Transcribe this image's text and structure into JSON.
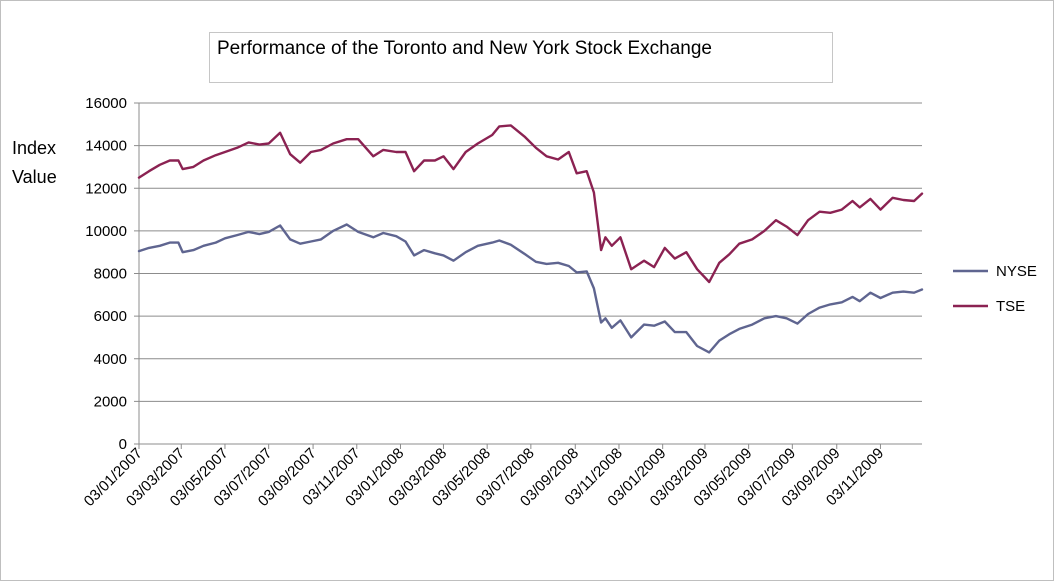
{
  "chart_data": {
    "type": "line",
    "title": "Performance of the Toronto and New York Stock Exchange",
    "ylabel_line1": "Index",
    "ylabel_line2": "Value",
    "xlabel": "",
    "ylim": [
      0,
      16000
    ],
    "yticks": [
      0,
      2000,
      4000,
      6000,
      8000,
      10000,
      12000,
      14000,
      16000
    ],
    "x_range": [
      "2007-01-03",
      "2009-12-31"
    ],
    "x_tick_labels": [
      "03/01/2007",
      "03/03/2007",
      "03/05/2007",
      "03/07/2007",
      "03/09/2007",
      "03/11/2007",
      "03/01/2008",
      "03/03/2008",
      "03/05/2008",
      "03/07/2008",
      "03/09/2008",
      "03/11/2008",
      "03/01/2009",
      "03/03/2009",
      "03/05/2009",
      "03/07/2009",
      "03/09/2009",
      "03/11/2009"
    ],
    "x_tick_dates": [
      "2007-01-03",
      "2007-03-03",
      "2007-05-03",
      "2007-07-03",
      "2007-09-03",
      "2007-11-03",
      "2008-01-03",
      "2008-03-03",
      "2008-05-03",
      "2008-07-03",
      "2008-09-03",
      "2008-11-03",
      "2009-01-03",
      "2009-03-03",
      "2009-05-03",
      "2009-07-03",
      "2009-09-03",
      "2009-11-03"
    ],
    "grid": true,
    "legend_position": "right",
    "series": [
      {
        "name": "NYSE",
        "color": "#5f6590",
        "points": [
          [
            "2007-01-03",
            9050
          ],
          [
            "2007-01-17",
            9200
          ],
          [
            "2007-02-01",
            9300
          ],
          [
            "2007-02-15",
            9450
          ],
          [
            "2007-02-27",
            9450
          ],
          [
            "2007-03-05",
            9000
          ],
          [
            "2007-03-20",
            9100
          ],
          [
            "2007-04-03",
            9300
          ],
          [
            "2007-04-20",
            9450
          ],
          [
            "2007-05-03",
            9650
          ],
          [
            "2007-05-20",
            9800
          ],
          [
            "2007-06-05",
            9950
          ],
          [
            "2007-06-20",
            9850
          ],
          [
            "2007-07-03",
            9950
          ],
          [
            "2007-07-19",
            10250
          ],
          [
            "2007-08-02",
            9600
          ],
          [
            "2007-08-16",
            9400
          ],
          [
            "2007-08-31",
            9500
          ],
          [
            "2007-09-14",
            9600
          ],
          [
            "2007-10-01",
            10000
          ],
          [
            "2007-10-20",
            10300
          ],
          [
            "2007-11-05",
            9950
          ],
          [
            "2007-11-26",
            9700
          ],
          [
            "2007-12-10",
            9900
          ],
          [
            "2007-12-28",
            9750
          ],
          [
            "2008-01-10",
            9500
          ],
          [
            "2008-01-22",
            8850
          ],
          [
            "2008-02-05",
            9100
          ],
          [
            "2008-02-20",
            8950
          ],
          [
            "2008-03-03",
            8850
          ],
          [
            "2008-03-17",
            8600
          ],
          [
            "2008-04-03",
            9000
          ],
          [
            "2008-04-20",
            9300
          ],
          [
            "2008-05-10",
            9450
          ],
          [
            "2008-05-20",
            9550
          ],
          [
            "2008-06-05",
            9350
          ],
          [
            "2008-06-25",
            8900
          ],
          [
            "2008-07-10",
            8550
          ],
          [
            "2008-07-25",
            8450
          ],
          [
            "2008-08-10",
            8500
          ],
          [
            "2008-08-25",
            8350
          ],
          [
            "2008-09-05",
            8050
          ],
          [
            "2008-09-19",
            8100
          ],
          [
            "2008-09-29",
            7300
          ],
          [
            "2008-10-09",
            5700
          ],
          [
            "2008-10-15",
            5900
          ],
          [
            "2008-10-24",
            5450
          ],
          [
            "2008-11-05",
            5800
          ],
          [
            "2008-11-20",
            5000
          ],
          [
            "2008-12-08",
            5600
          ],
          [
            "2008-12-22",
            5550
          ],
          [
            "2009-01-06",
            5750
          ],
          [
            "2009-01-20",
            5250
          ],
          [
            "2009-02-05",
            5250
          ],
          [
            "2009-02-20",
            4600
          ],
          [
            "2009-03-09",
            4300
          ],
          [
            "2009-03-23",
            4850
          ],
          [
            "2009-04-06",
            5150
          ],
          [
            "2009-04-20",
            5400
          ],
          [
            "2009-05-08",
            5600
          ],
          [
            "2009-05-25",
            5900
          ],
          [
            "2009-06-10",
            6000
          ],
          [
            "2009-06-25",
            5900
          ],
          [
            "2009-07-10",
            5650
          ],
          [
            "2009-07-25",
            6100
          ],
          [
            "2009-08-10",
            6400
          ],
          [
            "2009-08-25",
            6550
          ],
          [
            "2009-09-10",
            6650
          ],
          [
            "2009-09-25",
            6900
          ],
          [
            "2009-10-05",
            6700
          ],
          [
            "2009-10-20",
            7100
          ],
          [
            "2009-11-03",
            6850
          ],
          [
            "2009-11-20",
            7100
          ],
          [
            "2009-12-05",
            7150
          ],
          [
            "2009-12-20",
            7100
          ],
          [
            "2009-12-31",
            7250
          ]
        ]
      },
      {
        "name": "TSE",
        "color": "#8b2252",
        "points": [
          [
            "2007-01-03",
            12500
          ],
          [
            "2007-01-17",
            12800
          ],
          [
            "2007-02-01",
            13100
          ],
          [
            "2007-02-15",
            13300
          ],
          [
            "2007-02-27",
            13300
          ],
          [
            "2007-03-05",
            12900
          ],
          [
            "2007-03-20",
            13000
          ],
          [
            "2007-04-03",
            13300
          ],
          [
            "2007-04-20",
            13550
          ],
          [
            "2007-05-03",
            13700
          ],
          [
            "2007-05-20",
            13900
          ],
          [
            "2007-06-05",
            14150
          ],
          [
            "2007-06-20",
            14050
          ],
          [
            "2007-07-03",
            14100
          ],
          [
            "2007-07-19",
            14600
          ],
          [
            "2007-08-02",
            13600
          ],
          [
            "2007-08-16",
            13200
          ],
          [
            "2007-08-31",
            13700
          ],
          [
            "2007-09-14",
            13800
          ],
          [
            "2007-10-01",
            14100
          ],
          [
            "2007-10-20",
            14300
          ],
          [
            "2007-11-05",
            14300
          ],
          [
            "2007-11-26",
            13500
          ],
          [
            "2007-12-10",
            13800
          ],
          [
            "2007-12-28",
            13700
          ],
          [
            "2008-01-10",
            13700
          ],
          [
            "2008-01-22",
            12800
          ],
          [
            "2008-02-05",
            13300
          ],
          [
            "2008-02-20",
            13300
          ],
          [
            "2008-03-03",
            13500
          ],
          [
            "2008-03-17",
            12900
          ],
          [
            "2008-04-03",
            13700
          ],
          [
            "2008-04-20",
            14100
          ],
          [
            "2008-05-10",
            14500
          ],
          [
            "2008-05-20",
            14900
          ],
          [
            "2008-06-05",
            14950
          ],
          [
            "2008-06-25",
            14400
          ],
          [
            "2008-07-10",
            13900
          ],
          [
            "2008-07-25",
            13500
          ],
          [
            "2008-08-10",
            13350
          ],
          [
            "2008-08-25",
            13700
          ],
          [
            "2008-09-05",
            12700
          ],
          [
            "2008-09-19",
            12800
          ],
          [
            "2008-09-29",
            11800
          ],
          [
            "2008-10-09",
            9100
          ],
          [
            "2008-10-15",
            9700
          ],
          [
            "2008-10-24",
            9300
          ],
          [
            "2008-11-05",
            9700
          ],
          [
            "2008-11-20",
            8200
          ],
          [
            "2008-12-08",
            8600
          ],
          [
            "2008-12-22",
            8300
          ],
          [
            "2009-01-06",
            9200
          ],
          [
            "2009-01-20",
            8700
          ],
          [
            "2009-02-05",
            9000
          ],
          [
            "2009-02-20",
            8200
          ],
          [
            "2009-03-09",
            7600
          ],
          [
            "2009-03-23",
            8500
          ],
          [
            "2009-04-06",
            8900
          ],
          [
            "2009-04-20",
            9400
          ],
          [
            "2009-05-08",
            9600
          ],
          [
            "2009-05-25",
            10000
          ],
          [
            "2009-06-10",
            10500
          ],
          [
            "2009-06-25",
            10200
          ],
          [
            "2009-07-10",
            9800
          ],
          [
            "2009-07-25",
            10500
          ],
          [
            "2009-08-10",
            10900
          ],
          [
            "2009-08-25",
            10850
          ],
          [
            "2009-09-10",
            11000
          ],
          [
            "2009-09-25",
            11400
          ],
          [
            "2009-10-05",
            11100
          ],
          [
            "2009-10-20",
            11500
          ],
          [
            "2009-11-03",
            11000
          ],
          [
            "2009-11-20",
            11550
          ],
          [
            "2009-12-05",
            11450
          ],
          [
            "2009-12-20",
            11400
          ],
          [
            "2009-12-31",
            11750
          ]
        ]
      }
    ]
  }
}
